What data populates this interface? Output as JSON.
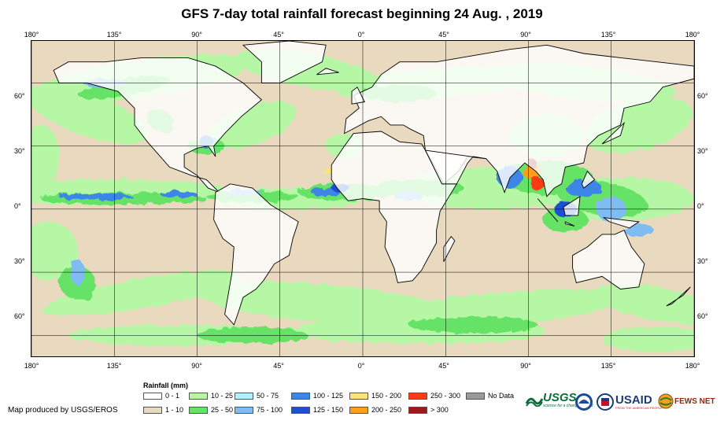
{
  "title": "GFS 7-day total rainfall forecast beginning 24 Aug. , 2019",
  "longitude_labels": [
    "180°",
    "135°",
    "90°",
    "45°",
    "0°",
    "45°",
    "90°",
    "135°",
    "180°"
  ],
  "latitude_labels": [
    "60°",
    "30°",
    "0°",
    "30°",
    "60°"
  ],
  "legend": {
    "title": "Rainfall (mm)",
    "items": [
      {
        "label": "0 - 1",
        "color": "#ffffff"
      },
      {
        "label": "1 - 10",
        "color": "#e9d9be"
      },
      {
        "label": "10 - 25",
        "color": "#b6f7a6"
      },
      {
        "label": "25 - 50",
        "color": "#66e266"
      },
      {
        "label": "50 - 75",
        "color": "#b2f0ff"
      },
      {
        "label": "75 - 100",
        "color": "#7fbcf2"
      },
      {
        "label": "100 - 125",
        "color": "#3c86e8"
      },
      {
        "label": "125 - 150",
        "color": "#1f4fd1"
      },
      {
        "label": "150 - 200",
        "color": "#ffe27a"
      },
      {
        "label": "200 - 250",
        "color": "#ff9e1a"
      },
      {
        "label": "250 - 300",
        "color": "#ff3a14"
      },
      {
        "label": "> 300",
        "color": "#a01818"
      },
      {
        "label": "No Data",
        "color": "#9a9a9a"
      }
    ]
  },
  "credit": "Map produced by USGS/EROS",
  "logos": {
    "usgs": "USGS",
    "usgs_tagline": "science for a changing world",
    "usaid": "USAID",
    "usaid_tagline": "FROM THE AMERICAN PEOPLE",
    "fewsnet": "FEWS NET"
  }
}
